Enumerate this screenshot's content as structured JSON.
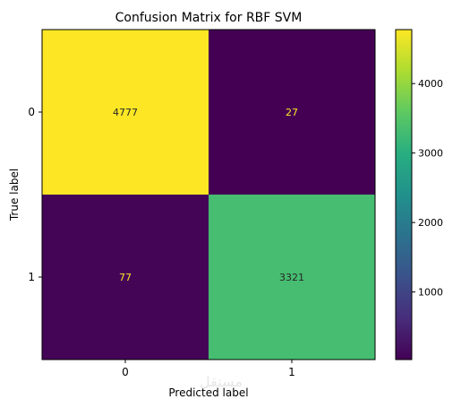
{
  "chart_data": {
    "type": "heatmap",
    "title": "Confusion Matrix for RBF SVM",
    "xlabel": "Predicted label",
    "ylabel": "True label",
    "x_categories": [
      "0",
      "1"
    ],
    "y_categories": [
      "0",
      "1"
    ],
    "values": [
      [
        4777,
        27
      ],
      [
        77,
        3321
      ]
    ],
    "colormap": "viridis",
    "color_range": [
      27,
      4777
    ],
    "colorbar_ticks": [
      1000,
      2000,
      3000,
      4000
    ],
    "label_colors": {
      "on_dark": "#fde725",
      "on_light": "#262626"
    },
    "grid": false
  },
  "watermark": "مستقل"
}
